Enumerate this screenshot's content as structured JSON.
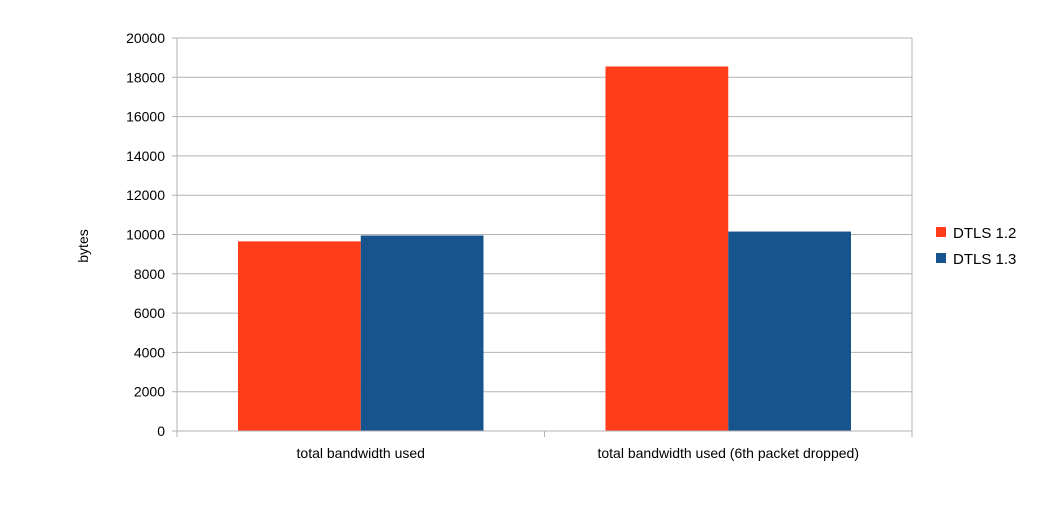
{
  "chart_data": {
    "type": "bar",
    "categories": [
      "total bandwidth used",
      "total bandwidth used (6th packet dropped)"
    ],
    "series": [
      {
        "name": "DTLS 1.2",
        "color": "#ff3d1a",
        "values": [
          9650,
          18550
        ]
      },
      {
        "name": "DTLS 1.3",
        "color": "#17538c",
        "values": [
          9950,
          10150
        ]
      }
    ],
    "ylabel": "bytes",
    "ylim": [
      0,
      20000
    ],
    "yticks": [
      0,
      2000,
      4000,
      6000,
      8000,
      10000,
      12000,
      14000,
      16000,
      18000,
      20000
    ],
    "grid": true,
    "legend_position": "right"
  }
}
